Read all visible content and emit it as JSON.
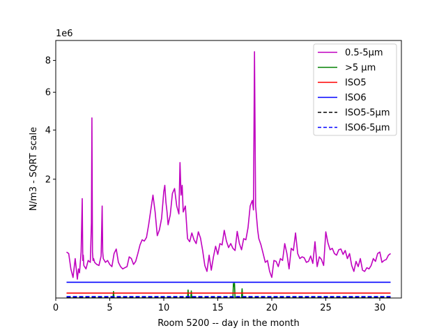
{
  "chart_data": {
    "type": "line",
    "title": "",
    "xlabel": "Room 5200 -- day in the month",
    "ylabel": "N/m3 - SQRT scale",
    "y_scale": "sqrt",
    "y_multiplier_label": "1e6",
    "xlim": [
      0.0,
      32.0
    ],
    "ylim": [
      0.0,
      9400000
    ],
    "x_ticks": [
      0,
      5,
      10,
      15,
      20,
      25,
      30
    ],
    "y_ticks": [
      2000000,
      4000000,
      6000000,
      8000000
    ],
    "y_tick_labels": [
      "2",
      "4",
      "6",
      "8"
    ],
    "grid": false,
    "legend_position": "top-right",
    "series": [
      {
        "name": "0.5-5µm",
        "color": "#bf00bf",
        "style": "solid",
        "x": [
          1.0,
          1.2,
          1.4,
          1.6,
          1.8,
          2.0,
          2.1,
          2.2,
          2.35,
          2.45,
          2.5,
          2.55,
          2.6,
          2.8,
          3.0,
          3.2,
          3.3,
          3.35,
          3.4,
          3.45,
          3.5,
          3.6,
          3.8,
          4.0,
          4.2,
          4.3,
          4.35,
          4.4,
          4.6,
          4.8,
          5.0,
          5.2,
          5.4,
          5.6,
          5.8,
          6.0,
          6.2,
          6.4,
          6.6,
          6.8,
          7.0,
          7.2,
          7.4,
          7.6,
          7.8,
          8.0,
          8.2,
          8.4,
          8.6,
          8.8,
          9.0,
          9.2,
          9.4,
          9.6,
          9.8,
          10.0,
          10.1,
          10.2,
          10.3,
          10.4,
          10.6,
          10.8,
          11.0,
          11.2,
          11.4,
          11.5,
          11.6,
          11.7,
          11.8,
          12.0,
          12.2,
          12.4,
          12.6,
          12.8,
          13.0,
          13.2,
          13.4,
          13.6,
          13.8,
          14.0,
          14.2,
          14.4,
          14.6,
          14.8,
          15.0,
          15.2,
          15.4,
          15.6,
          15.8,
          16.0,
          16.2,
          16.4,
          16.6,
          16.8,
          17.0,
          17.2,
          17.4,
          17.6,
          17.8,
          18.0,
          18.2,
          18.3,
          18.4,
          18.5,
          18.6,
          18.7,
          18.8,
          19.0,
          19.2,
          19.4,
          19.6,
          19.8,
          20.0,
          20.2,
          20.4,
          20.6,
          20.8,
          21.0,
          21.2,
          21.4,
          21.6,
          21.8,
          22.0,
          22.2,
          22.4,
          22.6,
          22.8,
          23.0,
          23.2,
          23.4,
          23.6,
          23.8,
          24.0,
          24.2,
          24.4,
          24.6,
          24.8,
          25.0,
          25.2,
          25.4,
          25.6,
          25.8,
          26.0,
          26.2,
          26.4,
          26.6,
          26.8,
          27.0,
          27.2,
          27.4,
          27.6,
          27.8,
          28.0,
          28.2,
          28.4,
          28.6,
          28.8,
          29.0,
          29.2,
          29.4,
          29.6,
          29.8,
          30.0,
          30.2,
          30.4,
          30.6,
          30.8,
          31.0
        ],
        "y": [
          300000,
          280000,
          120000,
          60000,
          220000,
          50000,
          120000,
          90000,
          300000,
          1400000,
          200000,
          260000,
          150000,
          120000,
          200000,
          180000,
          800000,
          4600000,
          300000,
          200000,
          220000,
          180000,
          160000,
          150000,
          250000,
          1200000,
          300000,
          220000,
          180000,
          200000,
          160000,
          140000,
          280000,
          340000,
          180000,
          140000,
          120000,
          130000,
          140000,
          240000,
          220000,
          160000,
          190000,
          280000,
          400000,
          480000,
          460000,
          520000,
          760000,
          1100000,
          1500000,
          1050000,
          550000,
          660000,
          900000,
          1600000,
          1800000,
          1300000,
          1050000,
          760000,
          980000,
          1550000,
          1700000,
          1200000,
          1000000,
          2600000,
          1500000,
          1800000,
          1050000,
          1200000,
          500000,
          450000,
          600000,
          480000,
          420000,
          620000,
          510000,
          320000,
          150000,
          100000,
          260000,
          110000,
          240000,
          380000,
          270000,
          420000,
          400000,
          650000,
          460000,
          360000,
          420000,
          350000,
          320000,
          630000,
          420000,
          330000,
          500000,
          480000,
          700000,
          1200000,
          1350000,
          1100000,
          8600000,
          1200000,
          900000,
          650000,
          500000,
          400000,
          280000,
          180000,
          200000,
          100000,
          60000,
          200000,
          190000,
          140000,
          220000,
          200000,
          420000,
          280000,
          120000,
          350000,
          320000,
          600000,
          280000,
          220000,
          240000,
          230000,
          180000,
          190000,
          250000,
          170000,
          450000,
          140000,
          240000,
          210000,
          150000,
          620000,
          430000,
          330000,
          350000,
          280000,
          260000,
          330000,
          340000,
          270000,
          320000,
          220000,
          280000,
          150000,
          100000,
          190000,
          140000,
          220000,
          110000,
          100000,
          130000,
          120000,
          150000,
          220000,
          190000,
          280000,
          300000,
          180000,
          200000,
          210000,
          260000,
          280000
        ]
      },
      {
        "name": ">5 µm",
        "color": "#008000",
        "style": "solid",
        "x": [
          1.0,
          5.3,
          5.35,
          5.4,
          10.0,
          12.2,
          12.25,
          12.3,
          12.5,
          12.55,
          12.6,
          16.4,
          16.45,
          16.5,
          16.55,
          16.6,
          17.2,
          17.25,
          17.3,
          18.0,
          31.0
        ],
        "y": [
          0,
          0,
          6000,
          0,
          0,
          0,
          9000,
          0,
          0,
          7000,
          0,
          0,
          30000,
          20000,
          30000,
          0,
          0,
          12000,
          0,
          0,
          0
        ]
      },
      {
        "name": "ISO5",
        "color": "#ff0000",
        "style": "solid",
        "x": [
          1.0,
          31.0
        ],
        "y": [
          3520,
          3520
        ]
      },
      {
        "name": "ISO6",
        "color": "#0000ff",
        "style": "solid",
        "x": [
          1.0,
          31.0
        ],
        "y": [
          35200,
          35200
        ]
      },
      {
        "name": "ISO5-5µm",
        "color": "#000000",
        "style": "dashed",
        "x": [
          1.0,
          31.0
        ],
        "y": [
          29,
          29
        ]
      },
      {
        "name": "ISO6-5µm",
        "color": "#0000ff",
        "style": "dashed",
        "x": [
          1.0,
          31.0
        ],
        "y": [
          293,
          293
        ]
      }
    ]
  }
}
